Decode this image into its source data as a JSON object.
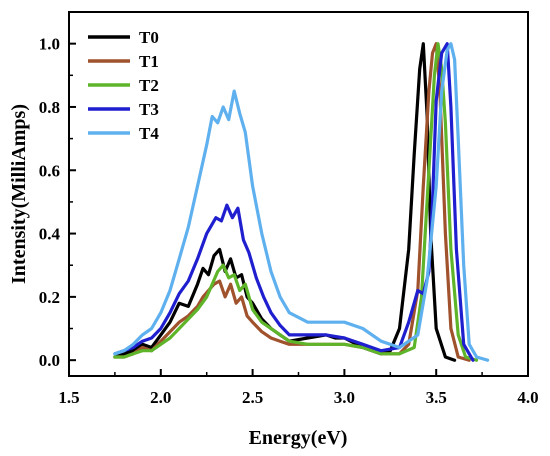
{
  "chart_data": {
    "type": "line",
    "title": "",
    "xlabel": "Energy(eV)",
    "ylabel": "Intensity(MilliAmps)",
    "xlim": [
      1.5,
      4.0
    ],
    "ylim": [
      -0.05,
      1.1
    ],
    "xticks": [
      "1.5",
      "2.0",
      "2.5",
      "3.0",
      "3.5",
      "4.0"
    ],
    "yticks": [
      "0.0",
      "0.2",
      "0.4",
      "0.6",
      "0.8",
      "1.0"
    ],
    "grid": false,
    "legend_position": "top-left",
    "series": [
      {
        "name": "T0",
        "color": "#000000",
        "x": [
          1.75,
          1.8,
          1.85,
          1.9,
          1.95,
          2.0,
          2.05,
          2.1,
          2.15,
          2.2,
          2.23,
          2.26,
          2.29,
          2.32,
          2.35,
          2.38,
          2.41,
          2.44,
          2.47,
          2.5,
          2.55,
          2.6,
          2.65,
          2.7,
          2.8,
          2.9,
          2.95,
          3.0,
          3.1,
          3.2,
          3.25,
          3.3,
          3.35,
          3.38,
          3.41,
          3.43,
          3.45,
          3.47,
          3.5,
          3.55,
          3.6
        ],
        "y": [
          0.01,
          0.02,
          0.03,
          0.05,
          0.04,
          0.08,
          0.12,
          0.18,
          0.17,
          0.24,
          0.29,
          0.27,
          0.33,
          0.35,
          0.28,
          0.32,
          0.26,
          0.27,
          0.2,
          0.18,
          0.13,
          0.1,
          0.08,
          0.06,
          0.07,
          0.08,
          0.07,
          0.07,
          0.04,
          0.02,
          0.03,
          0.1,
          0.35,
          0.65,
          0.92,
          1.0,
          0.78,
          0.4,
          0.1,
          0.01,
          0.0
        ]
      },
      {
        "name": "T1",
        "color": "#a0522d",
        "x": [
          1.75,
          1.8,
          1.85,
          1.9,
          1.95,
          2.0,
          2.05,
          2.1,
          2.15,
          2.2,
          2.23,
          2.26,
          2.29,
          2.32,
          2.35,
          2.38,
          2.41,
          2.44,
          2.47,
          2.5,
          2.55,
          2.6,
          2.65,
          2.7,
          2.8,
          2.9,
          3.0,
          3.1,
          3.2,
          3.3,
          3.35,
          3.4,
          3.43,
          3.46,
          3.48,
          3.5,
          3.52,
          3.55,
          3.58,
          3.62,
          3.68
        ],
        "y": [
          0.01,
          0.01,
          0.02,
          0.04,
          0.03,
          0.06,
          0.09,
          0.12,
          0.14,
          0.17,
          0.2,
          0.22,
          0.24,
          0.25,
          0.2,
          0.24,
          0.18,
          0.2,
          0.14,
          0.12,
          0.09,
          0.07,
          0.06,
          0.05,
          0.05,
          0.05,
          0.05,
          0.04,
          0.02,
          0.02,
          0.05,
          0.22,
          0.55,
          0.85,
          0.97,
          1.0,
          0.85,
          0.4,
          0.1,
          0.01,
          0.0
        ]
      },
      {
        "name": "T2",
        "color": "#5fb52a",
        "x": [
          1.75,
          1.8,
          1.85,
          1.9,
          1.95,
          2.0,
          2.05,
          2.1,
          2.15,
          2.2,
          2.25,
          2.28,
          2.31,
          2.34,
          2.37,
          2.4,
          2.43,
          2.46,
          2.5,
          2.55,
          2.6,
          2.65,
          2.7,
          2.8,
          2.9,
          3.0,
          3.1,
          3.2,
          3.3,
          3.38,
          3.42,
          3.46,
          3.49,
          3.51,
          3.53,
          3.55,
          3.58,
          3.62,
          3.66,
          3.72
        ],
        "y": [
          0.01,
          0.01,
          0.02,
          0.03,
          0.03,
          0.05,
          0.07,
          0.1,
          0.13,
          0.16,
          0.2,
          0.24,
          0.28,
          0.3,
          0.26,
          0.27,
          0.22,
          0.24,
          0.16,
          0.12,
          0.1,
          0.08,
          0.06,
          0.05,
          0.05,
          0.05,
          0.04,
          0.02,
          0.02,
          0.04,
          0.2,
          0.6,
          0.9,
          1.0,
          0.92,
          0.75,
          0.35,
          0.08,
          0.01,
          0.0
        ]
      },
      {
        "name": "T3",
        "color": "#1f1fcf",
        "x": [
          1.75,
          1.8,
          1.85,
          1.9,
          1.95,
          2.0,
          2.05,
          2.1,
          2.15,
          2.2,
          2.25,
          2.3,
          2.33,
          2.36,
          2.39,
          2.42,
          2.45,
          2.48,
          2.52,
          2.56,
          2.6,
          2.65,
          2.7,
          2.8,
          2.9,
          3.0,
          3.1,
          3.2,
          3.3,
          3.35,
          3.4,
          3.43,
          3.46,
          3.48,
          3.5,
          3.53,
          3.56,
          3.58,
          3.61,
          3.65,
          3.7
        ],
        "y": [
          0.02,
          0.03,
          0.04,
          0.06,
          0.07,
          0.1,
          0.15,
          0.21,
          0.25,
          0.32,
          0.4,
          0.45,
          0.44,
          0.49,
          0.45,
          0.48,
          0.38,
          0.34,
          0.26,
          0.2,
          0.15,
          0.11,
          0.08,
          0.08,
          0.08,
          0.07,
          0.05,
          0.03,
          0.04,
          0.12,
          0.22,
          0.21,
          0.28,
          0.5,
          0.82,
          0.97,
          1.0,
          0.8,
          0.35,
          0.05,
          0.0
        ]
      },
      {
        "name": "T4",
        "color": "#5fb0ee",
        "x": [
          1.75,
          1.8,
          1.85,
          1.9,
          1.95,
          2.0,
          2.05,
          2.1,
          2.15,
          2.2,
          2.25,
          2.28,
          2.31,
          2.34,
          2.37,
          2.4,
          2.43,
          2.46,
          2.5,
          2.55,
          2.6,
          2.65,
          2.7,
          2.8,
          2.9,
          3.0,
          3.1,
          3.2,
          3.3,
          3.4,
          3.45,
          3.5,
          3.53,
          3.56,
          3.58,
          3.6,
          3.62,
          3.65,
          3.68,
          3.72,
          3.78
        ],
        "y": [
          0.02,
          0.03,
          0.05,
          0.08,
          0.1,
          0.15,
          0.22,
          0.32,
          0.42,
          0.55,
          0.68,
          0.77,
          0.75,
          0.8,
          0.76,
          0.85,
          0.78,
          0.72,
          0.55,
          0.4,
          0.28,
          0.2,
          0.15,
          0.12,
          0.12,
          0.12,
          0.1,
          0.06,
          0.04,
          0.08,
          0.25,
          0.55,
          0.85,
          0.98,
          1.0,
          0.95,
          0.7,
          0.3,
          0.05,
          0.01,
          0.0
        ]
      }
    ]
  }
}
